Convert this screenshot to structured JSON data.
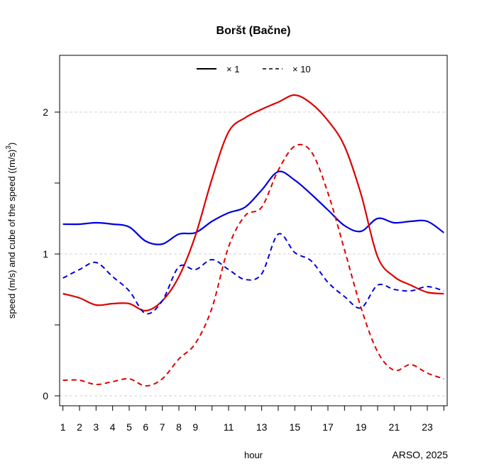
{
  "chart_data": {
    "type": "line",
    "title": "Boršt (Bačne)",
    "xlabel": "hour",
    "ylabel_main": "speed (m/s) and cube of the speed ((m/s)",
    "ylabel_sup": "3",
    "ylabel_end": ")",
    "credit": "ARSO, 2025",
    "xlim": [
      0.8,
      24.2
    ],
    "ylim": [
      -0.07,
      2.4
    ],
    "x_ticks": [
      1,
      2,
      3,
      4,
      5,
      6,
      7,
      8,
      9,
      11,
      13,
      15,
      17,
      19,
      21,
      23
    ],
    "y_ticks": [
      0,
      1,
      2
    ],
    "y_grid": [
      0,
      1,
      2
    ],
    "legend_position": "top",
    "legend": [
      {
        "label": "× 1",
        "dash": "solid"
      },
      {
        "label": "×  10",
        "dash": "dashed"
      }
    ],
    "x": [
      1,
      2,
      3,
      4,
      5,
      6,
      7,
      8,
      9,
      10,
      11,
      12,
      13,
      14,
      15,
      16,
      17,
      18,
      19,
      20,
      21,
      22,
      23,
      24
    ],
    "series": [
      {
        "color": "#0000dd",
        "dash": "solid",
        "values": [
          1.21,
          1.21,
          1.22,
          1.21,
          1.19,
          1.09,
          1.07,
          1.14,
          1.15,
          1.23,
          1.29,
          1.33,
          1.45,
          1.58,
          1.52,
          1.42,
          1.31,
          1.2,
          1.16,
          1.25,
          1.22,
          1.23,
          1.23,
          1.15
        ]
      },
      {
        "color": "#dd0000",
        "dash": "solid",
        "values": [
          0.72,
          0.69,
          0.64,
          0.65,
          0.65,
          0.6,
          0.67,
          0.84,
          1.13,
          1.53,
          1.86,
          1.96,
          2.02,
          2.07,
          2.12,
          2.06,
          1.94,
          1.76,
          1.42,
          0.98,
          0.84,
          0.78,
          0.73,
          0.72
        ]
      },
      {
        "color": "#0000dd",
        "dash": "dashed",
        "values": [
          0.83,
          0.89,
          0.94,
          0.84,
          0.74,
          0.58,
          0.67,
          0.91,
          0.89,
          0.96,
          0.89,
          0.82,
          0.86,
          1.14,
          1.01,
          0.95,
          0.8,
          0.7,
          0.62,
          0.78,
          0.75,
          0.74,
          0.77,
          0.74
        ]
      },
      {
        "color": "#dd0000",
        "dash": "dashed",
        "values": [
          0.11,
          0.11,
          0.08,
          0.1,
          0.12,
          0.07,
          0.12,
          0.26,
          0.37,
          0.62,
          1.05,
          1.27,
          1.33,
          1.59,
          1.76,
          1.72,
          1.43,
          1.03,
          0.62,
          0.31,
          0.18,
          0.22,
          0.16,
          0.12
        ]
      }
    ]
  }
}
